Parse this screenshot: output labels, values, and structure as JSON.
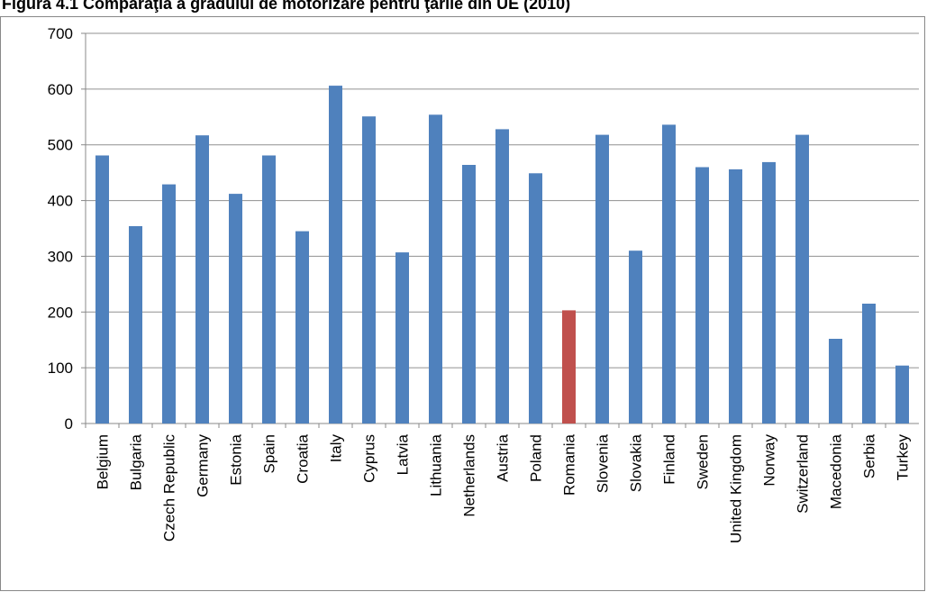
{
  "chart_data": {
    "type": "bar",
    "title": "Figura 4.1 Comparaţia a gradului de motorizare pentru ţările din UE (2010)",
    "xlabel": "",
    "ylabel": "",
    "ylim": [
      0,
      700
    ],
    "yticks": [
      0,
      100,
      200,
      300,
      400,
      500,
      600,
      700
    ],
    "grid": true,
    "legend": "none",
    "bar_color": "#4F81BD",
    "highlight_color": "#C0504D",
    "highlight_category": "Romania",
    "categories": [
      "Belgium",
      "Bulgaria",
      "Czech Republic",
      "Germany",
      "Estonia",
      "Spain",
      "Croatia",
      "Italy",
      "Cyprus",
      "Latvia",
      "Lithuania",
      "Netherlands",
      "Austria",
      "Poland",
      "Romania",
      "Slovenia",
      "Slovakia",
      "Finland",
      "Sweden",
      "United Kingdom",
      "Norway",
      "Switzerland",
      "Macedonia",
      "Serbia",
      "Turkey"
    ],
    "values": [
      481,
      354,
      429,
      517,
      412,
      481,
      345,
      606,
      551,
      307,
      554,
      464,
      528,
      449,
      203,
      518,
      310,
      536,
      460,
      456,
      469,
      518,
      152,
      215,
      104
    ]
  }
}
